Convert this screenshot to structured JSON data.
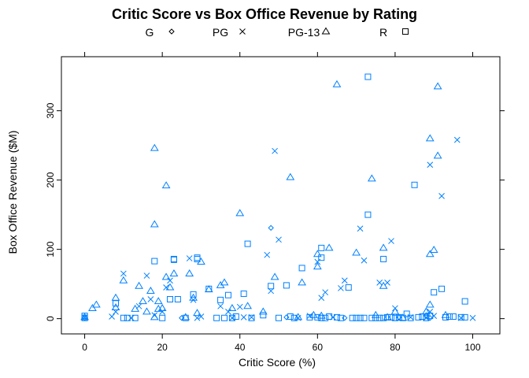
{
  "chart_data": {
    "type": "scatter",
    "title": "Critic Score vs Box Office Revenue by Rating",
    "xlabel": "Critic Score (%)",
    "ylabel": "Box Office Revenue ($M)",
    "xlim": [
      -6,
      107
    ],
    "ylim": [
      -22,
      378
    ],
    "xticks": [
      0,
      20,
      40,
      60,
      80,
      100
    ],
    "yticks": [
      0,
      100,
      200,
      300
    ],
    "grid": false,
    "legend_position": "top",
    "mark_color": "#0080ff",
    "series": [
      {
        "name": "G",
        "symbol": "diamond",
        "points": [
          [
            0,
            1
          ],
          [
            25,
            1
          ],
          [
            48,
            131
          ],
          [
            52,
            2
          ],
          [
            67,
            1
          ],
          [
            81,
            2
          ],
          [
            88,
            5
          ],
          [
            89,
            1
          ]
        ]
      },
      {
        "name": "PG",
        "symbol": "x",
        "points": [
          [
            0,
            2
          ],
          [
            7,
            3
          ],
          [
            8,
            10
          ],
          [
            10,
            65
          ],
          [
            12,
            1
          ],
          [
            14,
            18
          ],
          [
            16,
            62
          ],
          [
            17,
            28
          ],
          [
            18,
            5
          ],
          [
            20,
            10
          ],
          [
            21,
            45
          ],
          [
            22,
            55
          ],
          [
            27,
            87
          ],
          [
            28,
            27
          ],
          [
            29,
            1
          ],
          [
            30,
            3
          ],
          [
            35,
            18
          ],
          [
            37,
            10
          ],
          [
            38,
            1
          ],
          [
            40,
            17
          ],
          [
            41,
            2
          ],
          [
            43,
            2
          ],
          [
            47,
            92
          ],
          [
            48,
            40
          ],
          [
            49,
            242
          ],
          [
            50,
            114
          ],
          [
            55,
            1
          ],
          [
            58,
            4
          ],
          [
            60,
            82
          ],
          [
            61,
            30
          ],
          [
            62,
            38
          ],
          [
            64,
            2
          ],
          [
            66,
            44
          ],
          [
            67,
            55
          ],
          [
            71,
            130
          ],
          [
            72,
            84
          ],
          [
            76,
            52
          ],
          [
            78,
            52
          ],
          [
            79,
            112
          ],
          [
            80,
            15
          ],
          [
            84,
            2
          ],
          [
            88,
            1
          ],
          [
            89,
            222
          ],
          [
            89,
            10
          ],
          [
            90,
            4
          ],
          [
            92,
            177
          ],
          [
            96,
            258
          ],
          [
            97,
            1
          ],
          [
            100,
            1
          ]
        ]
      },
      {
        "name": "PG-13",
        "symbol": "triangle",
        "points": [
          [
            0,
            2
          ],
          [
            2,
            15
          ],
          [
            3,
            20
          ],
          [
            8,
            30
          ],
          [
            8,
            16
          ],
          [
            10,
            55
          ],
          [
            13,
            14
          ],
          [
            14,
            47
          ],
          [
            15,
            25
          ],
          [
            16,
            10
          ],
          [
            17,
            40
          ],
          [
            18,
            246
          ],
          [
            18,
            136
          ],
          [
            18,
            2
          ],
          [
            19,
            14
          ],
          [
            19,
            25
          ],
          [
            20,
            15
          ],
          [
            21,
            192
          ],
          [
            21,
            60
          ],
          [
            22,
            45
          ],
          [
            23,
            65
          ],
          [
            26,
            2
          ],
          [
            27,
            65
          ],
          [
            28,
            30
          ],
          [
            29,
            8
          ],
          [
            30,
            82
          ],
          [
            32,
            42
          ],
          [
            35,
            48
          ],
          [
            36,
            52
          ],
          [
            38,
            15
          ],
          [
            40,
            152
          ],
          [
            42,
            18
          ],
          [
            46,
            10
          ],
          [
            49,
            60
          ],
          [
            53,
            204
          ],
          [
            55,
            2
          ],
          [
            56,
            52
          ],
          [
            59,
            5
          ],
          [
            60,
            75
          ],
          [
            60,
            93
          ],
          [
            61,
            4
          ],
          [
            63,
            102
          ],
          [
            65,
            338
          ],
          [
            70,
            95
          ],
          [
            74,
            202
          ],
          [
            75,
            5
          ],
          [
            77,
            102
          ],
          [
            77,
            47
          ],
          [
            78,
            2
          ],
          [
            80,
            10
          ],
          [
            82,
            1
          ],
          [
            88,
            10
          ],
          [
            89,
            260
          ],
          [
            89,
            93
          ],
          [
            89,
            20
          ],
          [
            90,
            99
          ],
          [
            91,
            235
          ],
          [
            91,
            335
          ],
          [
            93,
            5
          ]
        ]
      },
      {
        "name": "R",
        "symbol": "square",
        "points": [
          [
            0,
            1
          ],
          [
            0,
            4
          ],
          [
            8,
            22
          ],
          [
            10,
            1
          ],
          [
            11,
            1
          ],
          [
            13,
            1
          ],
          [
            18,
            83
          ],
          [
            20,
            1
          ],
          [
            22,
            28
          ],
          [
            23,
            86
          ],
          [
            23,
            85
          ],
          [
            24,
            28
          ],
          [
            26,
            1
          ],
          [
            28,
            35
          ],
          [
            29,
            88
          ],
          [
            29,
            86
          ],
          [
            32,
            43
          ],
          [
            34,
            1
          ],
          [
            35,
            27
          ],
          [
            36,
            1
          ],
          [
            37,
            34
          ],
          [
            38,
            1
          ],
          [
            39,
            3
          ],
          [
            41,
            36
          ],
          [
            42,
            108
          ],
          [
            43,
            1
          ],
          [
            46,
            5
          ],
          [
            48,
            47
          ],
          [
            50,
            1
          ],
          [
            52,
            48
          ],
          [
            53,
            3
          ],
          [
            54,
            1
          ],
          [
            56,
            73
          ],
          [
            58,
            2
          ],
          [
            60,
            2
          ],
          [
            61,
            88
          ],
          [
            61,
            102
          ],
          [
            61,
            1
          ],
          [
            62,
            1
          ],
          [
            63,
            3
          ],
          [
            65,
            2
          ],
          [
            66,
            1
          ],
          [
            68,
            45
          ],
          [
            69,
            1
          ],
          [
            70,
            1
          ],
          [
            71,
            1
          ],
          [
            72,
            1
          ],
          [
            73,
            349
          ],
          [
            73,
            150
          ],
          [
            74,
            1
          ],
          [
            75,
            1
          ],
          [
            76,
            1
          ],
          [
            77,
            86
          ],
          [
            77,
            1
          ],
          [
            78,
            2
          ],
          [
            79,
            2
          ],
          [
            80,
            1
          ],
          [
            81,
            2
          ],
          [
            82,
            1
          ],
          [
            83,
            7
          ],
          [
            84,
            1
          ],
          [
            85,
            193
          ],
          [
            86,
            2
          ],
          [
            87,
            3
          ],
          [
            88,
            1
          ],
          [
            89,
            4
          ],
          [
            90,
            38
          ],
          [
            92,
            43
          ],
          [
            93,
            2
          ],
          [
            94,
            3
          ],
          [
            95,
            3
          ],
          [
            97,
            2
          ],
          [
            98,
            25
          ],
          [
            98,
            2
          ]
        ]
      }
    ]
  }
}
